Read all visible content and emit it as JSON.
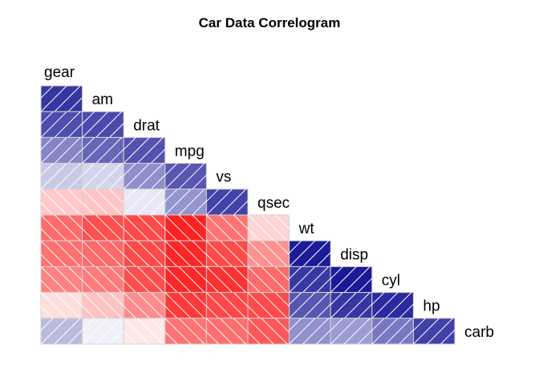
{
  "chart_data": {
    "type": "heatmap",
    "title": "Car Data Correlogram",
    "variables": [
      "gear",
      "am",
      "drat",
      "mpg",
      "vs",
      "qsec",
      "wt",
      "disp",
      "cyl",
      "hp",
      "carb"
    ],
    "layout": "lower-triangle",
    "shading": "diagonal hatch: positive = blue with / lines, negative = red with \\ lines",
    "value_range": [
      -1,
      1
    ],
    "colors": {
      "positive": "#00008B",
      "negative": "#FF0000",
      "mid": "#FFFFFF",
      "border": "#D3D3D3",
      "hatch": "#FFFFFF"
    },
    "correlations": [
      {
        "row": "am",
        "values": [
          0.79
        ]
      },
      {
        "row": "drat",
        "values": [
          0.7,
          0.71
        ]
      },
      {
        "row": "mpg",
        "values": [
          0.48,
          0.6,
          0.68
        ]
      },
      {
        "row": "vs",
        "values": [
          0.21,
          0.17,
          0.44,
          0.66
        ]
      },
      {
        "row": "qsec",
        "values": [
          -0.21,
          -0.23,
          0.09,
          0.42,
          0.74
        ]
      },
      {
        "row": "wt",
        "values": [
          -0.58,
          -0.69,
          -0.71,
          -0.87,
          -0.55,
          -0.17
        ]
      },
      {
        "row": "disp",
        "values": [
          -0.56,
          -0.59,
          -0.71,
          -0.85,
          -0.71,
          -0.43,
          0.89
        ]
      },
      {
        "row": "cyl",
        "values": [
          -0.49,
          -0.52,
          -0.7,
          -0.85,
          -0.81,
          -0.59,
          0.78,
          0.9
        ]
      },
      {
        "row": "hp",
        "values": [
          -0.13,
          -0.24,
          -0.45,
          -0.78,
          -0.72,
          -0.71,
          0.66,
          0.79,
          0.83
        ]
      },
      {
        "row": "carb",
        "values": [
          0.27,
          0.06,
          -0.09,
          -0.55,
          -0.57,
          -0.66,
          0.43,
          0.39,
          0.53,
          0.75
        ]
      }
    ]
  }
}
